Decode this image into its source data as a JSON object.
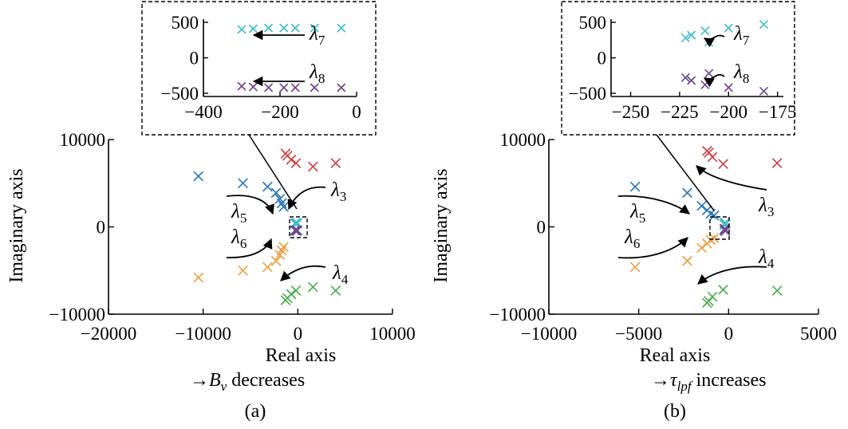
{
  "chart_data": [
    {
      "panel": "(a)",
      "type": "scatter",
      "caption": "(a)",
      "sweep_label": "B",
      "sweep_label_sub": "v",
      "sweep_text": "decreases",
      "xlabel": "Real axis",
      "ylabel": "Imaginary axis",
      "xlim": [
        -20000,
        10000
      ],
      "ylim": [
        -10000,
        10000
      ],
      "xticks": [
        -20000,
        -10000,
        0,
        10000
      ],
      "yticks": [
        -10000,
        0,
        10000
      ],
      "series": [
        {
          "color": "#c8494b",
          "points": [
            [
              -1300,
              8400
            ],
            [
              -1100,
              8150
            ],
            [
              -700,
              7700
            ],
            [
              -200,
              7300
            ],
            [
              1600,
              6900
            ],
            [
              4000,
              7300
            ]
          ]
        },
        {
          "color": "#c8494b",
          "points": []
        },
        {
          "color": "#2f78b3",
          "points": [
            [
              -10500,
              5800
            ],
            [
              -5800,
              5000
            ],
            [
              -3200,
              4600
            ],
            [
              -2300,
              3900
            ],
            [
              -1900,
              3200
            ],
            [
              -1700,
              2700
            ],
            [
              -1500,
              2300
            ]
          ]
        },
        {
          "color": "#e7a24b",
          "points": [
            [
              -10500,
              -5800
            ],
            [
              -5800,
              -5000
            ],
            [
              -3200,
              -4600
            ],
            [
              -2300,
              -3900
            ],
            [
              -1900,
              -3200
            ],
            [
              -1700,
              -2700
            ],
            [
              -1500,
              -2300
            ]
          ]
        },
        {
          "color": "#53ad57",
          "points": [
            [
              -1300,
              -8400
            ],
            [
              -1100,
              -8150
            ],
            [
              -700,
              -7700
            ],
            [
              -200,
              -7300
            ],
            [
              1600,
              -6900
            ],
            [
              4000,
              -7300
            ]
          ]
        },
        {
          "color": "#46bcc9",
          "points": [
            [
              -300,
              400
            ],
            [
              -270,
              410
            ],
            [
              -230,
              420
            ],
            [
              -190,
              420
            ],
            [
              -160,
              420
            ],
            [
              -110,
              420
            ],
            [
              -40,
              420
            ]
          ]
        },
        {
          "color": "#6d4a8e",
          "points": [
            [
              -300,
              -400
            ],
            [
              -270,
              -410
            ],
            [
              -230,
              -420
            ],
            [
              -190,
              -420
            ],
            [
              -160,
              -420
            ],
            [
              -110,
              -420
            ],
            [
              -40,
              -420
            ]
          ]
        }
      ],
      "annotations": [
        {
          "symbol": "λ",
          "sub": "3"
        },
        {
          "symbol": "λ",
          "sub": "4"
        },
        {
          "symbol": "λ",
          "sub": "5"
        },
        {
          "symbol": "λ",
          "sub": "6"
        }
      ],
      "inset": {
        "xlim": [
          -400,
          0
        ],
        "ylim": [
          -500,
          500
        ],
        "xticks": [
          -400,
          -200,
          0
        ],
        "yticks": [
          -500,
          0,
          500
        ],
        "annotations": [
          {
            "symbol": "λ",
            "sub": "7"
          },
          {
            "symbol": "λ",
            "sub": "8"
          }
        ]
      }
    },
    {
      "panel": "(b)",
      "type": "scatter",
      "caption": "(b)",
      "sweep_label": "τ",
      "sweep_label_sub": "lpf",
      "sweep_text": "increases",
      "xlabel": "Real axis",
      "ylabel": "Imaginary axis",
      "xlim": [
        -10000,
        5000
      ],
      "ylim": [
        -10000,
        10000
      ],
      "xticks": [
        -10000,
        -5000,
        0,
        5000
      ],
      "yticks": [
        -10000,
        0,
        10000
      ],
      "series": [
        {
          "color": "#c8494b",
          "points": [
            [
              -1200,
              8700
            ],
            [
              -1100,
              8500
            ],
            [
              -900,
              8000
            ],
            [
              -300,
              7200
            ],
            [
              2700,
              7300
            ]
          ]
        },
        {
          "color": "#2f78b3",
          "points": [
            [
              -5200,
              4600
            ],
            [
              -2300,
              3900
            ],
            [
              -1500,
              2400
            ],
            [
              -1200,
              1900
            ],
            [
              -1000,
              1500
            ],
            [
              -800,
              1300
            ]
          ]
        },
        {
          "color": "#e7a24b",
          "points": [
            [
              -5200,
              -4600
            ],
            [
              -2300,
              -3900
            ],
            [
              -1500,
              -2400
            ],
            [
              -1200,
              -1900
            ],
            [
              -1000,
              -1500
            ],
            [
              -800,
              -1300
            ]
          ]
        },
        {
          "color": "#53ad57",
          "points": [
            [
              -1200,
              -8700
            ],
            [
              -1100,
              -8500
            ],
            [
              -900,
              -8000
            ],
            [
              -300,
              -7200
            ],
            [
              2700,
              -7300
            ]
          ]
        },
        {
          "color": "#46bcc9",
          "points": [
            [
              -222,
              280
            ],
            [
              -219,
              320
            ],
            [
              -212,
              380
            ],
            [
              -210,
              220
            ],
            [
              -200,
              420
            ],
            [
              -182,
              470
            ]
          ]
        },
        {
          "color": "#6d4a8e",
          "points": [
            [
              -222,
              -280
            ],
            [
              -219,
              -320
            ],
            [
              -212,
              -380
            ],
            [
              -210,
              -220
            ],
            [
              -200,
              -420
            ],
            [
              -182,
              -470
            ]
          ]
        }
      ],
      "annotations": [
        {
          "symbol": "λ",
          "sub": "3"
        },
        {
          "symbol": "λ",
          "sub": "4"
        },
        {
          "symbol": "λ",
          "sub": "5"
        },
        {
          "symbol": "λ",
          "sub": "6"
        }
      ],
      "inset": {
        "xlim": [
          -260,
          -172
        ],
        "ylim": [
          -500,
          500
        ],
        "xticks": [
          -250,
          -225,
          -200,
          -175
        ],
        "yticks": [
          -500,
          0,
          500
        ],
        "annotations": [
          {
            "symbol": "λ",
            "sub": "7"
          },
          {
            "symbol": "λ",
            "sub": "8"
          }
        ]
      }
    }
  ]
}
